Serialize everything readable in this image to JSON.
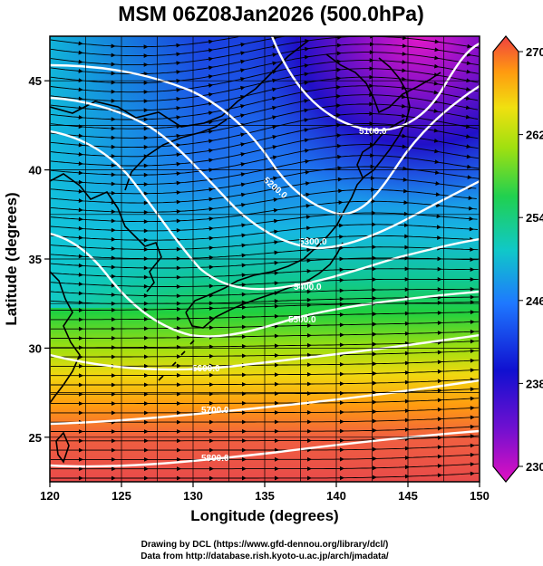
{
  "title": "MSM 06Z08Jan2026 (500.0hPa)",
  "xlabel": "Longitude (degrees)",
  "ylabel": "Latitude  (degrees)",
  "x_ticks": [
    "120",
    "125",
    "130",
    "135",
    "140",
    "145",
    "150"
  ],
  "y_ticks": [
    "25",
    "30",
    "35",
    "40",
    "45"
  ],
  "colorbar_ticks": [
    "270",
    "262",
    "254",
    "246",
    "238",
    "230"
  ],
  "contour_labels": [
    "5100.0",
    "5200.0",
    "5300.0",
    "5400.0",
    "5500.0",
    "5600.0",
    "5700.0",
    "5800.0"
  ],
  "footer": {
    "line1": "Drawing by DCL (https://www.gfd-dennou.org/library/dcl/)",
    "line2": "Data from http://database.rish.kyoto-u.ac.jp/arch/jmadata/"
  },
  "colors": {
    "warm": "#e84a4a",
    "cold": "#a010c0",
    "contour": "#ffffff",
    "streamline": "#000000",
    "coast": "#000000"
  },
  "map_data": {
    "projection": "equirectangular",
    "lon_range": [
      120,
      150
    ],
    "lat_range": [
      22.5,
      47.5
    ],
    "shaded_variable_range": [
      230,
      270
    ],
    "contour_interval": 100,
    "grid": true
  }
}
